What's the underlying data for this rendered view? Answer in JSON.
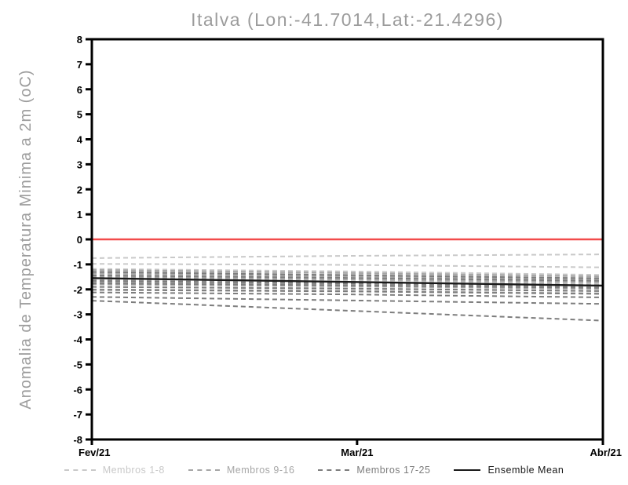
{
  "chart_data": {
    "type": "line",
    "title": "Italva (Lon:-41.7014,Lat:-21.4296)",
    "title_color": "#9c9c9c",
    "ylabel": "Anomalia de Temperatura Minima a 2m (oC)",
    "ylabel_color": "#9c9c9c",
    "xlabel": "",
    "ylim": [
      -8,
      8
    ],
    "y_ticks": [
      8,
      7,
      6,
      5,
      4,
      3,
      2,
      1,
      0,
      -1,
      -2,
      -3,
      -4,
      -5,
      -6,
      -7,
      -8
    ],
    "x_ticks": [
      {
        "label": "Fev/21",
        "pos": 0
      },
      {
        "label": "Mar/21",
        "pos": 0.519
      },
      {
        "label": "Abr/21",
        "pos": 1
      }
    ],
    "x": [
      0,
      0.5,
      1
    ],
    "axis_color": "#000000",
    "grid": false,
    "legend_position": "bottom",
    "zero_line": {
      "value": 0,
      "color": "#f24b4b"
    },
    "series": [
      {
        "name": "Membros 1-8",
        "style": "dashed",
        "color": "#c9c9c9",
        "members": [
          [
            -0.75,
            -0.66,
            -0.6
          ],
          [
            -0.98,
            -1.02,
            -1.12
          ],
          [
            -1.18,
            -1.28,
            -1.42
          ],
          [
            -1.26,
            -1.38,
            -1.52
          ],
          [
            -1.33,
            -1.44,
            -1.58
          ],
          [
            -1.4,
            -1.48,
            -1.62
          ],
          [
            -1.47,
            -1.56,
            -1.7
          ],
          [
            -1.55,
            -1.65,
            -1.78
          ]
        ]
      },
      {
        "name": "Membros 9-16",
        "style": "dashed",
        "color": "#a6a6a6",
        "members": [
          [
            -1.22,
            -1.34,
            -1.48
          ],
          [
            -1.36,
            -1.47,
            -1.6
          ],
          [
            -1.5,
            -1.6,
            -1.72
          ],
          [
            -1.62,
            -1.7,
            -1.82
          ],
          [
            -1.72,
            -1.8,
            -1.9
          ],
          [
            -1.8,
            -1.88,
            -1.98
          ],
          [
            -1.9,
            -1.96,
            -2.06
          ],
          [
            -2.0,
            -2.06,
            -2.16
          ]
        ]
      },
      {
        "name": "Membros 17-25",
        "style": "dashed",
        "color": "#7d7d7d",
        "members": [
          [
            -1.3,
            -1.43,
            -1.56
          ],
          [
            -1.44,
            -1.54,
            -1.66
          ],
          [
            -1.66,
            -1.76,
            -1.86
          ],
          [
            -1.76,
            -1.84,
            -1.94
          ],
          [
            -1.9,
            -1.97,
            -2.07
          ],
          [
            -2.02,
            -2.08,
            -2.18
          ],
          [
            -2.12,
            -2.2,
            -2.32
          ],
          [
            -2.3,
            -2.44,
            -2.58
          ],
          [
            -2.45,
            -2.85,
            -3.25
          ]
        ]
      },
      {
        "name": "Ensemble Mean",
        "style": "solid",
        "color": "#1a1a1a",
        "values": [
          -1.55,
          -1.7,
          -1.85
        ]
      }
    ]
  }
}
